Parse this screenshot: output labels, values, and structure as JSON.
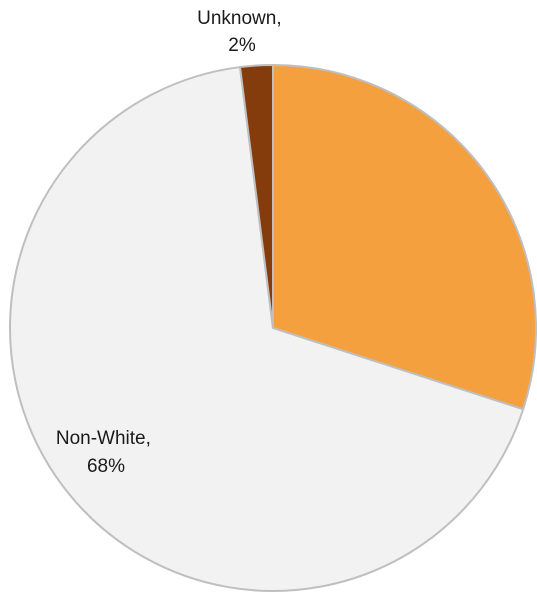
{
  "chart_data": {
    "type": "pie",
    "title": "",
    "slices": [
      {
        "label": "",
        "value": 30,
        "color": "#F4A03F"
      },
      {
        "label": "Non-White",
        "value": 68,
        "color": "#F2F2F2",
        "data_label": {
          "line1": "Non-White,",
          "line2": "68%"
        }
      },
      {
        "label": "Unknown",
        "value": 2,
        "color": "#843C0C",
        "data_label": {
          "line1": "Unknown,",
          "line2": "2%"
        }
      }
    ],
    "start_angle": "12 o'clock",
    "direction": "clockwise",
    "slice_border_color": "#BFBFBF",
    "legend": "none"
  }
}
